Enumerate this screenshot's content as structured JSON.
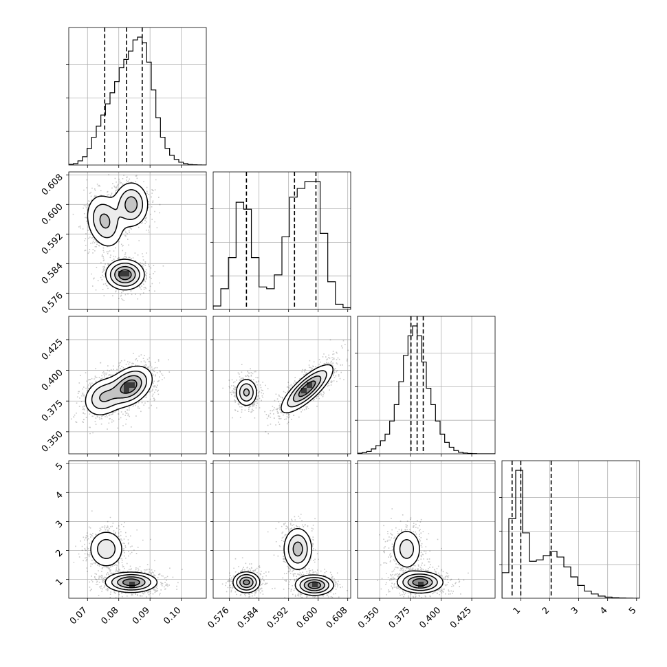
{
  "chart_data": {
    "type": "corner",
    "grid": true,
    "style": {
      "hist_color": "#000000",
      "quantile_line": "dashed",
      "contour_color": "#000000",
      "scatter_color": "#000000",
      "panel_background": "#ffffff"
    },
    "parameters": [
      {
        "range": [
          0.064,
          0.108
        ],
        "ticks": [
          0.07,
          0.08,
          0.09,
          0.1
        ],
        "tick_labels": [
          "0.07",
          "0.08",
          "0.09",
          "0.10"
        ],
        "quantiles": [
          0.0755,
          0.0825,
          0.0875
        ],
        "histogram": [
          0.005,
          0.01,
          0.03,
          0.06,
          0.12,
          0.2,
          0.28,
          0.36,
          0.44,
          0.52,
          0.6,
          0.7,
          0.76,
          0.82,
          0.9,
          0.92,
          0.88,
          0.74,
          0.54,
          0.34,
          0.2,
          0.12,
          0.07,
          0.04,
          0.02,
          0.01,
          0.004,
          0.002,
          0.001,
          0
        ]
      },
      {
        "range": [
          0.5716,
          0.6088
        ],
        "ticks": [
          0.576,
          0.584,
          0.592,
          0.6,
          0.608
        ],
        "tick_labels": [
          "0.576",
          "0.584",
          "0.592",
          "0.600",
          "0.608"
        ],
        "quantiles": [
          0.5806,
          0.5936,
          0.5994
        ],
        "histogram": [
          0.02,
          0.12,
          0.3,
          0.62,
          0.58,
          0.3,
          0.13,
          0.12,
          0.2,
          0.42,
          0.65,
          0.7,
          0.74,
          0.74,
          0.44,
          0.16,
          0.03,
          0.01
        ]
      },
      {
        "range": [
          0.332,
          0.444
        ],
        "ticks": [
          0.35,
          0.375,
          0.4,
          0.425
        ],
        "tick_labels": [
          "0.350",
          "0.375",
          "0.400",
          "0.425"
        ],
        "quantiles": [
          0.3755,
          0.3805,
          0.3855
        ],
        "histogram": [
          0.004,
          0.008,
          0.015,
          0.03,
          0.05,
          0.08,
          0.12,
          0.2,
          0.3,
          0.44,
          0.6,
          0.72,
          0.78,
          0.72,
          0.56,
          0.4,
          0.3,
          0.2,
          0.12,
          0.07,
          0.04,
          0.02,
          0.01,
          0.005,
          0.002,
          0.001,
          0,
          0,
          0,
          0
        ]
      },
      {
        "range": [
          0.35,
          5.1
        ],
        "ticks": [
          1,
          2,
          3,
          4,
          5
        ],
        "tick_labels": [
          "1",
          "2",
          "3",
          "4",
          "5"
        ],
        "quantiles": [
          0.7,
          1.0,
          2.05
        ],
        "histogram": [
          0.18,
          0.56,
          0.9,
          0.46,
          0.26,
          0.27,
          0.3,
          0.33,
          0.29,
          0.22,
          0.15,
          0.09,
          0.05,
          0.03,
          0.015,
          0.008,
          0.004,
          0.002,
          0.001,
          0
        ]
      }
    ],
    "pairs": [
      {
        "row": 1,
        "col": 0,
        "modes": [
          {
            "mx": 0.0755,
            "my": 0.5955,
            "sx": 0.003,
            "sy": 0.0037,
            "rho": -0.2,
            "w": 1.0
          },
          {
            "mx": 0.084,
            "my": 0.6,
            "sx": 0.0028,
            "sy": 0.0031,
            "rho": 0.0,
            "w": 1.1
          },
          {
            "mx": 0.082,
            "my": 0.581,
            "sx": 0.003,
            "sy": 0.002,
            "rho": 0.0,
            "w": 1.6
          }
        ]
      },
      {
        "row": 2,
        "col": 0,
        "modes": [
          {
            "mx": 0.075,
            "my": 0.378,
            "sx": 0.0032,
            "sy": 0.008,
            "rho": 0.2,
            "w": 0.8
          },
          {
            "mx": 0.0835,
            "my": 0.387,
            "sx": 0.0035,
            "sy": 0.008,
            "rho": 0.35,
            "w": 1.4
          }
        ]
      },
      {
        "row": 2,
        "col": 1,
        "modes": [
          {
            "mx": 0.5806,
            "my": 0.382,
            "sx": 0.0015,
            "sy": 0.0058,
            "rho": 0.0,
            "w": 1.0
          },
          {
            "mx": 0.597,
            "my": 0.385,
            "sx": 0.0034,
            "sy": 0.0095,
            "rho": 0.8,
            "w": 1.6
          }
        ]
      },
      {
        "row": 3,
        "col": 0,
        "modes": [
          {
            "mx": 0.076,
            "my": 2.05,
            "sx": 0.003,
            "sy": 0.35,
            "rho": 0.0,
            "w": 0.6
          },
          {
            "mx": 0.084,
            "my": 0.9,
            "sx": 0.004,
            "sy": 0.17,
            "rho": 0.0,
            "w": 1.3
          }
        ]
      },
      {
        "row": 3,
        "col": 1,
        "modes": [
          {
            "mx": 0.5806,
            "my": 0.9,
            "sx": 0.0018,
            "sy": 0.18,
            "rho": 0.0,
            "w": 0.8
          },
          {
            "mx": 0.5945,
            "my": 2.05,
            "sx": 0.002,
            "sy": 0.38,
            "rho": 0.0,
            "w": 0.6
          },
          {
            "mx": 0.599,
            "my": 0.8,
            "sx": 0.0025,
            "sy": 0.17,
            "rho": 0.0,
            "w": 0.9
          }
        ]
      },
      {
        "row": 3,
        "col": 2,
        "modes": [
          {
            "mx": 0.372,
            "my": 2.05,
            "sx": 0.0065,
            "sy": 0.38,
            "rho": 0.0,
            "w": 0.6
          },
          {
            "mx": 0.383,
            "my": 0.9,
            "sx": 0.009,
            "sy": 0.18,
            "rho": 0.0,
            "w": 1.4
          }
        ]
      }
    ]
  }
}
